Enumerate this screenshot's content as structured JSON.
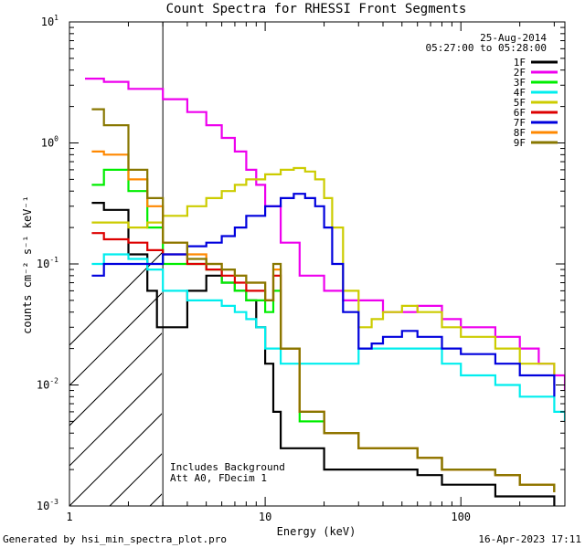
{
  "chart_data": {
    "type": "line",
    "title": "Count Spectra for RHESSI Front Segments",
    "xlabel": "Energy (keV)",
    "ylabel": "counts cm⁻² s⁻¹ keV⁻¹",
    "x_scale": "log",
    "y_scale": "log",
    "xlim": [
      1,
      340
    ],
    "ylim": [
      0.001,
      10
    ],
    "x_ticks": [
      {
        "value": 1,
        "label": "1"
      },
      {
        "value": 10,
        "label": "10"
      },
      {
        "value": 100,
        "label": "100"
      }
    ],
    "y_ticks": [
      {
        "value": 0.001,
        "base": "10",
        "exp": "-3"
      },
      {
        "value": 0.01,
        "base": "10",
        "exp": "-2"
      },
      {
        "value": 0.1,
        "base": "10",
        "exp": "-1"
      },
      {
        "value": 1,
        "base": "10",
        "exp": "0"
      },
      {
        "value": 10,
        "base": "10",
        "exp": "1"
      }
    ],
    "date": "25-Aug-2014",
    "time_range": "05:27:00 to 05:28:00",
    "annotations": [
      "Includes Background",
      "Att A0, FDecim 1"
    ],
    "footer_left": "Generated by hsi_min_spectra_plot.pro",
    "footer_right": "16-Apr-2023 17:11",
    "shaded_region": [
      1,
      3
    ],
    "legend_position": "top-right",
    "series": [
      {
        "name": "1F",
        "color": "#000000",
        "x": [
          1.3,
          1.5,
          2,
          2.5,
          2.8,
          3,
          4,
          5,
          6,
          7,
          8,
          9,
          10,
          11,
          12,
          15,
          20,
          30,
          40,
          60,
          80,
          100,
          150,
          200,
          300
        ],
        "y": [
          0.32,
          0.28,
          0.12,
          0.06,
          0.03,
          0.03,
          0.06,
          0.08,
          0.07,
          0.06,
          0.05,
          0.03,
          0.015,
          0.006,
          0.003,
          0.003,
          0.002,
          0.002,
          0.002,
          0.0018,
          0.0015,
          0.0015,
          0.0012,
          0.0012,
          0.001
        ]
      },
      {
        "name": "2F",
        "color": "#ee00ee",
        "x": [
          1.2,
          1.5,
          2,
          3,
          4,
          5,
          6,
          7,
          8,
          9,
          10,
          12,
          15,
          20,
          25,
          30,
          40,
          50,
          60,
          80,
          100,
          150,
          200,
          250,
          300,
          340
        ],
        "y": [
          3.4,
          3.2,
          2.8,
          2.3,
          1.8,
          1.4,
          1.1,
          0.85,
          0.6,
          0.45,
          0.3,
          0.15,
          0.08,
          0.06,
          0.05,
          0.05,
          0.04,
          0.04,
          0.045,
          0.035,
          0.03,
          0.025,
          0.02,
          0.015,
          0.012,
          0.009
        ]
      },
      {
        "name": "3F",
        "color": "#00ee00",
        "x": [
          1.3,
          1.5,
          2,
          2.5,
          3,
          4,
          5,
          6,
          7,
          8,
          10,
          11,
          12,
          15,
          20,
          30,
          40,
          60,
          80,
          100,
          150,
          200,
          300
        ],
        "y": [
          0.45,
          0.6,
          0.4,
          0.2,
          0.1,
          0.1,
          0.09,
          0.07,
          0.06,
          0.05,
          0.04,
          0.06,
          0.02,
          0.005,
          0.004,
          0.003,
          0.003,
          0.0025,
          0.002,
          0.002,
          0.0018,
          0.0015,
          0.0013
        ]
      },
      {
        "name": "4F",
        "color": "#00eeee",
        "x": [
          1.3,
          1.5,
          2,
          2.5,
          3,
          4,
          5,
          6,
          7,
          8,
          9,
          10,
          12,
          15,
          20,
          30,
          40,
          60,
          80,
          100,
          150,
          200,
          300,
          340
        ],
        "y": [
          0.1,
          0.12,
          0.11,
          0.09,
          0.06,
          0.05,
          0.05,
          0.045,
          0.04,
          0.035,
          0.03,
          0.02,
          0.015,
          0.015,
          0.015,
          0.02,
          0.02,
          0.02,
          0.015,
          0.012,
          0.01,
          0.008,
          0.006,
          0.005
        ]
      },
      {
        "name": "5F",
        "color": "#cccc00",
        "x": [
          1.3,
          1.5,
          2,
          2.5,
          3,
          4,
          5,
          6,
          7,
          8,
          10,
          12,
          14,
          16,
          18,
          20,
          22,
          25,
          30,
          35,
          40,
          50,
          60,
          80,
          100,
          150,
          200,
          300
        ],
        "y": [
          0.22,
          0.22,
          0.2,
          0.22,
          0.25,
          0.3,
          0.35,
          0.4,
          0.45,
          0.5,
          0.55,
          0.6,
          0.62,
          0.58,
          0.5,
          0.35,
          0.2,
          0.06,
          0.03,
          0.035,
          0.04,
          0.045,
          0.04,
          0.03,
          0.025,
          0.02,
          0.015,
          0.01
        ]
      },
      {
        "name": "6F",
        "color": "#dd0000",
        "x": [
          1.3,
          1.5,
          2,
          2.5,
          3,
          4,
          5,
          6,
          7,
          8,
          10,
          11,
          12,
          15,
          20,
          30,
          40,
          60,
          80,
          100,
          150,
          200,
          300
        ],
        "y": [
          0.18,
          0.16,
          0.15,
          0.13,
          0.12,
          0.1,
          0.09,
          0.08,
          0.07,
          0.06,
          0.05,
          0.08,
          0.02,
          0.006,
          0.004,
          0.003,
          0.003,
          0.0025,
          0.002,
          0.002,
          0.0018,
          0.0015,
          0.0013
        ]
      },
      {
        "name": "7F",
        "color": "#0000dd",
        "x": [
          1.3,
          1.5,
          2,
          2.5,
          3,
          4,
          5,
          6,
          7,
          8,
          10,
          12,
          14,
          16,
          18,
          20,
          22,
          25,
          30,
          35,
          40,
          50,
          60,
          80,
          100,
          150,
          200,
          300
        ],
        "y": [
          0.08,
          0.1,
          0.1,
          0.1,
          0.12,
          0.14,
          0.15,
          0.17,
          0.2,
          0.25,
          0.3,
          0.35,
          0.38,
          0.35,
          0.3,
          0.2,
          0.1,
          0.04,
          0.02,
          0.022,
          0.025,
          0.028,
          0.025,
          0.02,
          0.018,
          0.015,
          0.012,
          0.008
        ]
      },
      {
        "name": "8F",
        "color": "#ff8800",
        "x": [
          1.3,
          1.5,
          2,
          2.5,
          3,
          4,
          5,
          6,
          7,
          8,
          10,
          11,
          12,
          15,
          20,
          30,
          40,
          60,
          80,
          100,
          150,
          200,
          300
        ],
        "y": [
          0.85,
          0.8,
          0.5,
          0.3,
          0.15,
          0.12,
          0.1,
          0.09,
          0.08,
          0.07,
          0.05,
          0.09,
          0.02,
          0.006,
          0.004,
          0.003,
          0.003,
          0.0025,
          0.002,
          0.002,
          0.0018,
          0.0015,
          0.0013
        ]
      },
      {
        "name": "9F",
        "color": "#887700",
        "x": [
          1.3,
          1.5,
          2,
          2.5,
          3,
          4,
          5,
          6,
          7,
          8,
          10,
          11,
          12,
          15,
          20,
          30,
          40,
          60,
          80,
          100,
          150,
          200,
          300
        ],
        "y": [
          1.9,
          1.4,
          0.6,
          0.35,
          0.15,
          0.11,
          0.1,
          0.09,
          0.08,
          0.07,
          0.05,
          0.1,
          0.02,
          0.006,
          0.004,
          0.003,
          0.003,
          0.0025,
          0.002,
          0.002,
          0.0018,
          0.0015,
          0.0013
        ]
      }
    ]
  }
}
